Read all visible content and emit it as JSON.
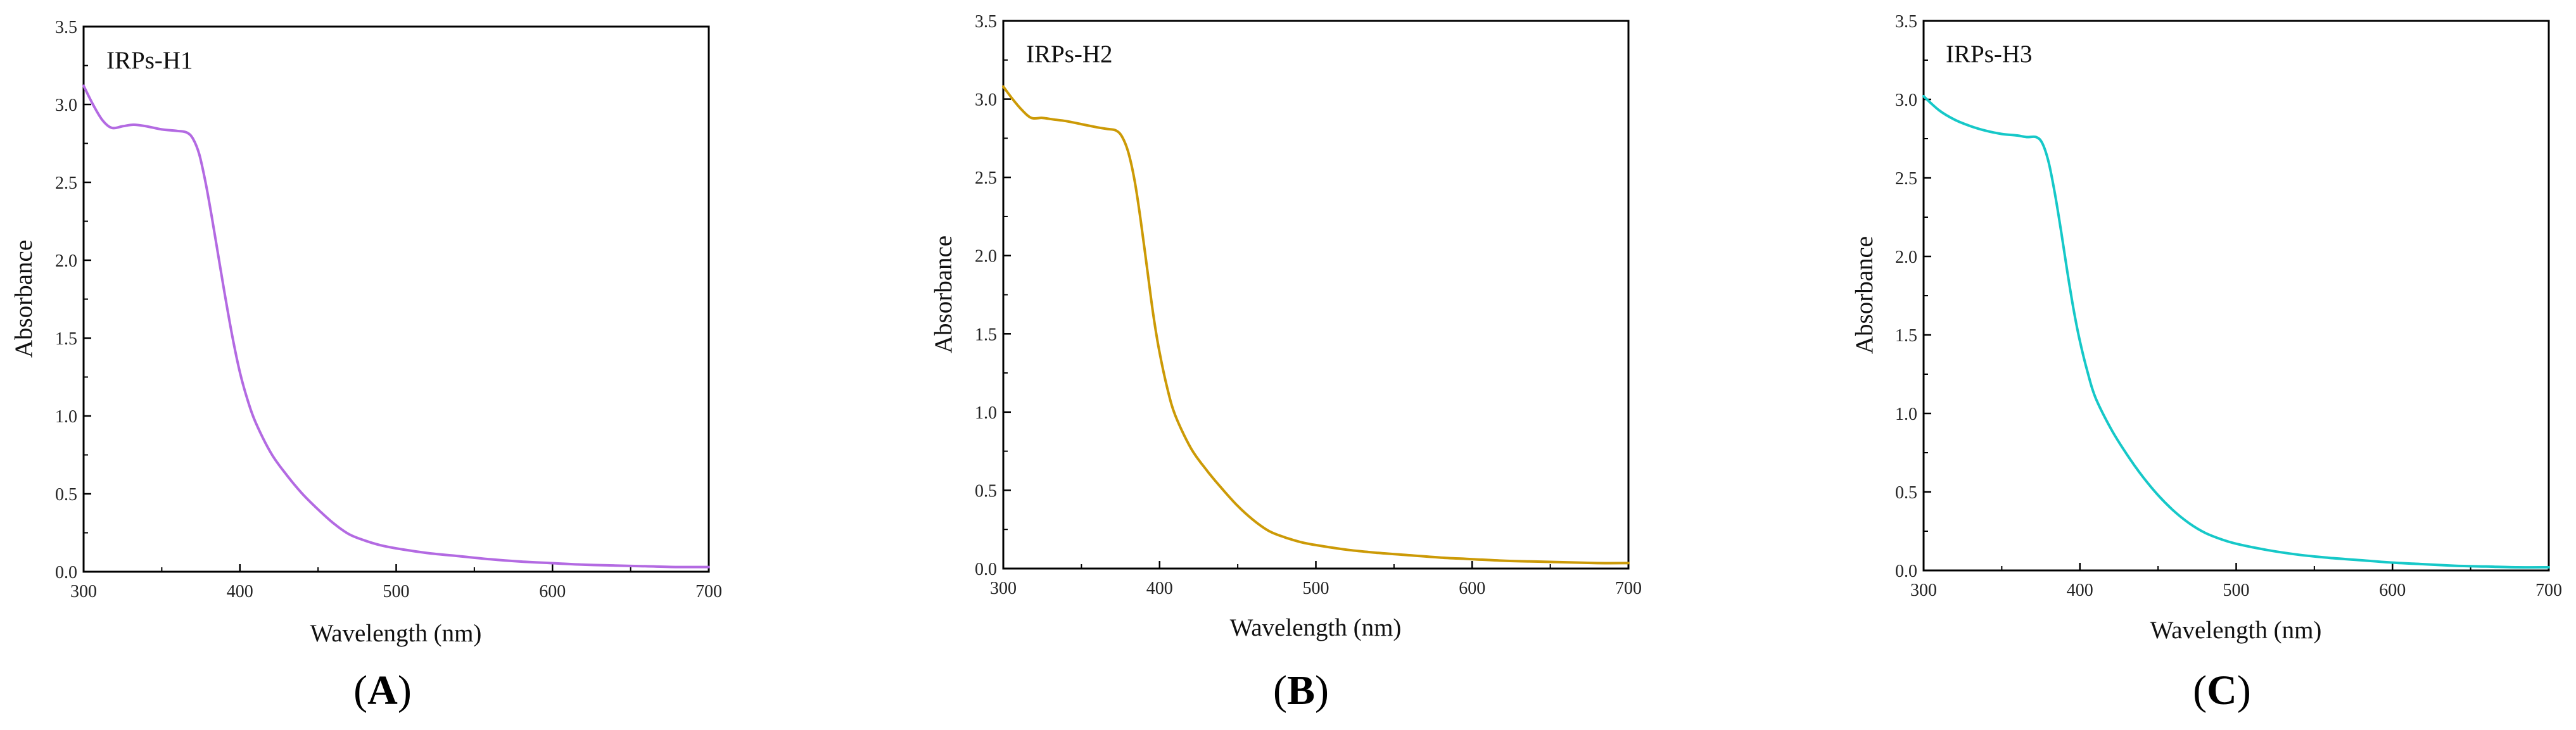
{
  "chart_data": [
    {
      "type": "line",
      "panel": "A",
      "annotation": "IRPs-H1",
      "color": "#b36ae2",
      "xlabel": "Wavelength (nm)",
      "ylabel": "Absorbance",
      "xlim": [
        300,
        700
      ],
      "ylim": [
        0,
        3.5
      ],
      "x_ticks": [
        300,
        400,
        500,
        600,
        700
      ],
      "y_ticks": [
        0.0,
        0.5,
        1.0,
        1.5,
        2.0,
        2.5,
        3.0,
        3.5
      ],
      "x_tick_labels": [
        "300",
        "400",
        "500",
        "600",
        "700"
      ],
      "y_tick_labels": [
        "0.0",
        "0.5",
        "1.0",
        "1.5",
        "2.0",
        "2.5",
        "3.0",
        "3.5"
      ],
      "series": [
        {
          "name": "IRPs-H1",
          "x": [
            300,
            306,
            312,
            318,
            325,
            332,
            340,
            350,
            360,
            366,
            370,
            374,
            378,
            382,
            386,
            390,
            395,
            400,
            405,
            410,
            420,
            430,
            440,
            450,
            460,
            470,
            480,
            490,
            500,
            520,
            540,
            560,
            580,
            600,
            620,
            640,
            660,
            680,
            700
          ],
          "y": [
            3.12,
            3.0,
            2.9,
            2.85,
            2.86,
            2.87,
            2.86,
            2.84,
            2.83,
            2.82,
            2.78,
            2.68,
            2.5,
            2.28,
            2.04,
            1.8,
            1.52,
            1.28,
            1.1,
            0.96,
            0.76,
            0.62,
            0.5,
            0.4,
            0.31,
            0.24,
            0.2,
            0.17,
            0.15,
            0.12,
            0.1,
            0.08,
            0.065,
            0.055,
            0.045,
            0.04,
            0.035,
            0.03,
            0.03
          ]
        }
      ]
    },
    {
      "type": "line",
      "panel": "B",
      "annotation": "IRPs-H2",
      "color": "#cc9a06",
      "xlabel": "Wavelength (nm)",
      "ylabel": "Absorbance",
      "xlim": [
        300,
        700
      ],
      "ylim": [
        0,
        3.5
      ],
      "x_ticks": [
        300,
        400,
        500,
        600,
        700
      ],
      "y_ticks": [
        0.0,
        0.5,
        1.0,
        1.5,
        2.0,
        2.5,
        3.0,
        3.5
      ],
      "x_tick_labels": [
        "300",
        "400",
        "500",
        "600",
        "700"
      ],
      "y_tick_labels": [
        "0.0",
        "0.5",
        "1.0",
        "1.5",
        "2.0",
        "2.5",
        "3.0",
        "3.5"
      ],
      "series": [
        {
          "name": "IRPs-H2",
          "x": [
            300,
            306,
            312,
            318,
            325,
            332,
            340,
            350,
            360,
            366,
            372,
            376,
            380,
            384,
            388,
            392,
            396,
            400,
            405,
            410,
            420,
            430,
            440,
            450,
            460,
            470,
            480,
            490,
            500,
            520,
            540,
            560,
            580,
            600,
            620,
            640,
            660,
            680,
            700
          ],
          "y": [
            3.08,
            3.0,
            2.93,
            2.88,
            2.88,
            2.87,
            2.86,
            2.84,
            2.82,
            2.81,
            2.8,
            2.76,
            2.66,
            2.48,
            2.22,
            1.92,
            1.62,
            1.38,
            1.15,
            0.98,
            0.77,
            0.63,
            0.51,
            0.4,
            0.31,
            0.24,
            0.2,
            0.17,
            0.15,
            0.12,
            0.1,
            0.085,
            0.07,
            0.06,
            0.05,
            0.045,
            0.04,
            0.035,
            0.035
          ]
        }
      ]
    },
    {
      "type": "line",
      "panel": "C",
      "annotation": "IRPs-H3",
      "color": "#16c8c8",
      "xlabel": "Wavelength (nm)",
      "ylabel": "Absorbance",
      "xlim": [
        300,
        700
      ],
      "ylim": [
        0,
        3.5
      ],
      "x_ticks": [
        300,
        400,
        500,
        600,
        700
      ],
      "y_ticks": [
        0.0,
        0.5,
        1.0,
        1.5,
        2.0,
        2.5,
        3.0,
        3.5
      ],
      "x_tick_labels": [
        "300",
        "400",
        "500",
        "600",
        "700"
      ],
      "y_tick_labels": [
        "0.0",
        "0.5",
        "1.0",
        "1.5",
        "2.0",
        "2.5",
        "3.0",
        "3.5"
      ],
      "series": [
        {
          "name": "IRPs-H3",
          "x": [
            300,
            310,
            320,
            330,
            340,
            350,
            360,
            366,
            372,
            376,
            380,
            384,
            388,
            392,
            396,
            400,
            405,
            410,
            420,
            430,
            440,
            450,
            460,
            470,
            480,
            490,
            500,
            520,
            540,
            560,
            580,
            600,
            620,
            640,
            660,
            680,
            700
          ],
          "y": [
            3.02,
            2.93,
            2.87,
            2.83,
            2.8,
            2.78,
            2.77,
            2.76,
            2.76,
            2.72,
            2.6,
            2.4,
            2.16,
            1.9,
            1.66,
            1.46,
            1.26,
            1.1,
            0.9,
            0.74,
            0.6,
            0.48,
            0.38,
            0.3,
            0.24,
            0.2,
            0.17,
            0.13,
            0.1,
            0.08,
            0.065,
            0.05,
            0.04,
            0.03,
            0.025,
            0.02,
            0.02
          ]
        }
      ]
    }
  ],
  "panels": [
    {
      "label_open": "(",
      "label_letter": "A",
      "label_close": ")"
    },
    {
      "label_open": "(",
      "label_letter": "B",
      "label_close": ")"
    },
    {
      "label_open": "(",
      "label_letter": "C",
      "label_close": ")"
    }
  ]
}
